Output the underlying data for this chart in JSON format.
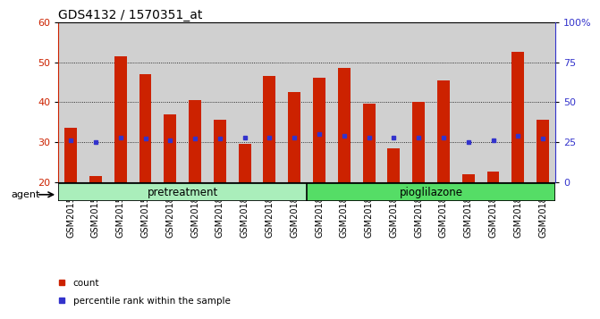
{
  "title": "GDS4132 / 1570351_at",
  "samples": [
    "GSM201542",
    "GSM201543",
    "GSM201544",
    "GSM201545",
    "GSM201829",
    "GSM201830",
    "GSM201831",
    "GSM201832",
    "GSM201833",
    "GSM201834",
    "GSM201835",
    "GSM201836",
    "GSM201837",
    "GSM201838",
    "GSM201839",
    "GSM201840",
    "GSM201841",
    "GSM201842",
    "GSM201843",
    "GSM201844"
  ],
  "count_values": [
    33.5,
    21.5,
    51.5,
    47.0,
    37.0,
    40.5,
    35.5,
    29.5,
    46.5,
    42.5,
    46.0,
    48.5,
    39.5,
    28.5,
    40.0,
    45.5,
    22.0,
    22.5,
    52.5,
    35.5
  ],
  "percentile_values": [
    26,
    25,
    28,
    27,
    26,
    27,
    27,
    28,
    28,
    28,
    30,
    29,
    28,
    28,
    28,
    28,
    25,
    26,
    29,
    27
  ],
  "bar_bottom": 20,
  "ylim_left": [
    20,
    60
  ],
  "ylim_right": [
    0,
    100
  ],
  "yticks_left": [
    20,
    30,
    40,
    50,
    60
  ],
  "yticks_right": [
    0,
    25,
    50,
    75,
    100
  ],
  "bar_color": "#CC2200",
  "dot_color": "#3333CC",
  "grid_color": "black",
  "pretreatment_samples": 10,
  "group_labels": [
    "pretreatment",
    "pioglilazone"
  ],
  "group_colors": [
    "#AAEEBB",
    "#55DD66"
  ],
  "legend_items": [
    "count",
    "percentile rank within the sample"
  ],
  "agent_label": "agent",
  "background_color": "#D0D0D0",
  "title_fontsize": 10,
  "tick_fontsize": 7,
  "group_fontsize": 8.5,
  "bar_width": 0.5
}
